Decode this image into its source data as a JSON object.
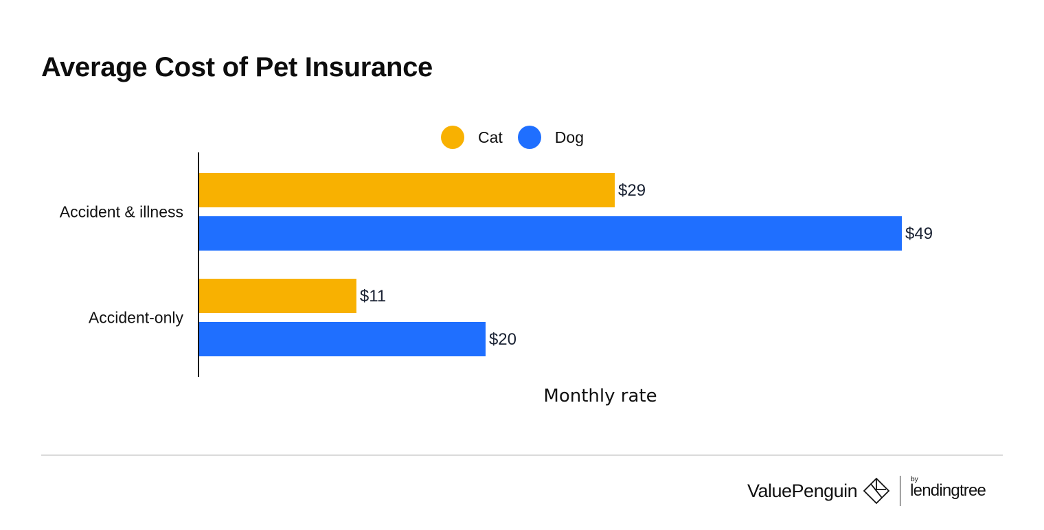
{
  "title": "Average Cost of Pet Insurance",
  "legend": [
    {
      "name": "Cat",
      "color": "#F8B101"
    },
    {
      "name": "Dog",
      "color": "#1F6FFF"
    }
  ],
  "chart_data": {
    "type": "bar",
    "orientation": "horizontal",
    "title": "Average Cost of Pet Insurance",
    "categories": [
      "Accident & illness",
      "Accident-only"
    ],
    "series": [
      {
        "name": "Cat",
        "color": "#F8B101",
        "values": [
          29,
          11
        ],
        "labels": [
          "$29",
          "$11"
        ]
      },
      {
        "name": "Dog",
        "color": "#1F6FFF",
        "values": [
          49,
          20
        ],
        "labels": [
          "$49",
          "$20"
        ]
      }
    ],
    "xlabel": "Monthly rate",
    "ylabel": "",
    "xlim": [
      0,
      49
    ],
    "grid": false,
    "legend_position": "top-center"
  },
  "footer": {
    "brand": "ValuePenguin",
    "partner_by": "by",
    "partner": "lendingtree"
  }
}
